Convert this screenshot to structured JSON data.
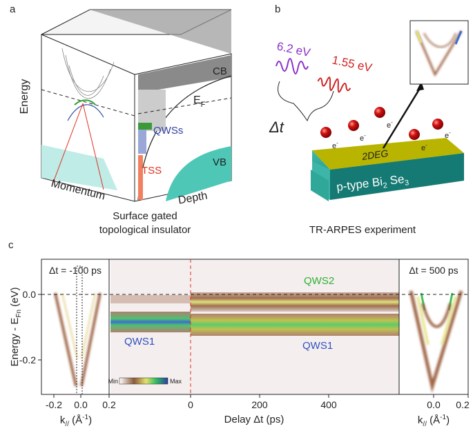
{
  "panel_a": {
    "label": "a",
    "energy_axis": "Energy",
    "momentum_axis": "Momentum",
    "depth_axis": "Depth",
    "conduction_band": "CB",
    "valence_band": "VB",
    "fermi_level": {
      "base": "E",
      "sub": "F"
    },
    "quantum_well_states": "QWSs",
    "surface_states": "TSS",
    "caption": [
      "Surface gated",
      "topological insulator"
    ]
  },
  "panel_b": {
    "label": "b",
    "pump_energy": "6.2 eV",
    "probe_energy": "1.55 eV",
    "delay": "Δt",
    "electron": {
      "base": "e",
      "sup": "-"
    },
    "layer": "2DEG",
    "substrate": {
      "prefix": "p-type Bi",
      "sub1": "2",
      "mid": " Se",
      "sub2": "3"
    },
    "caption": "TR-ARPES experiment"
  },
  "panel_c": {
    "label": "c",
    "y_axis": {
      "base": "Energy - E",
      "sub": "Fn",
      "unit": " (eV)"
    },
    "y_ticks": [
      "0.0",
      "-0.2"
    ],
    "k_axis": {
      "base": "k",
      "sub": "//",
      "unit_open": " (Å",
      "unit_sup": "-1",
      "unit_close": ")"
    },
    "left": {
      "title": "Δt = -100 ps",
      "x_ticks": [
        "-0.2",
        "0.0",
        "0.2"
      ]
    },
    "middle": {
      "x_axis": "Delay Δt (ps)",
      "x_ticks": [
        "0",
        "200",
        "400"
      ],
      "labels": {
        "upper_state": "QWS2",
        "lower_state_before": "QWS1",
        "lower_state_after": "QWS1"
      },
      "colorbar": {
        "min": "Min",
        "max": "Max"
      }
    },
    "right": {
      "title": "Δt = 500 ps",
      "x_ticks": [
        "0.0",
        "0.2"
      ]
    }
  }
}
